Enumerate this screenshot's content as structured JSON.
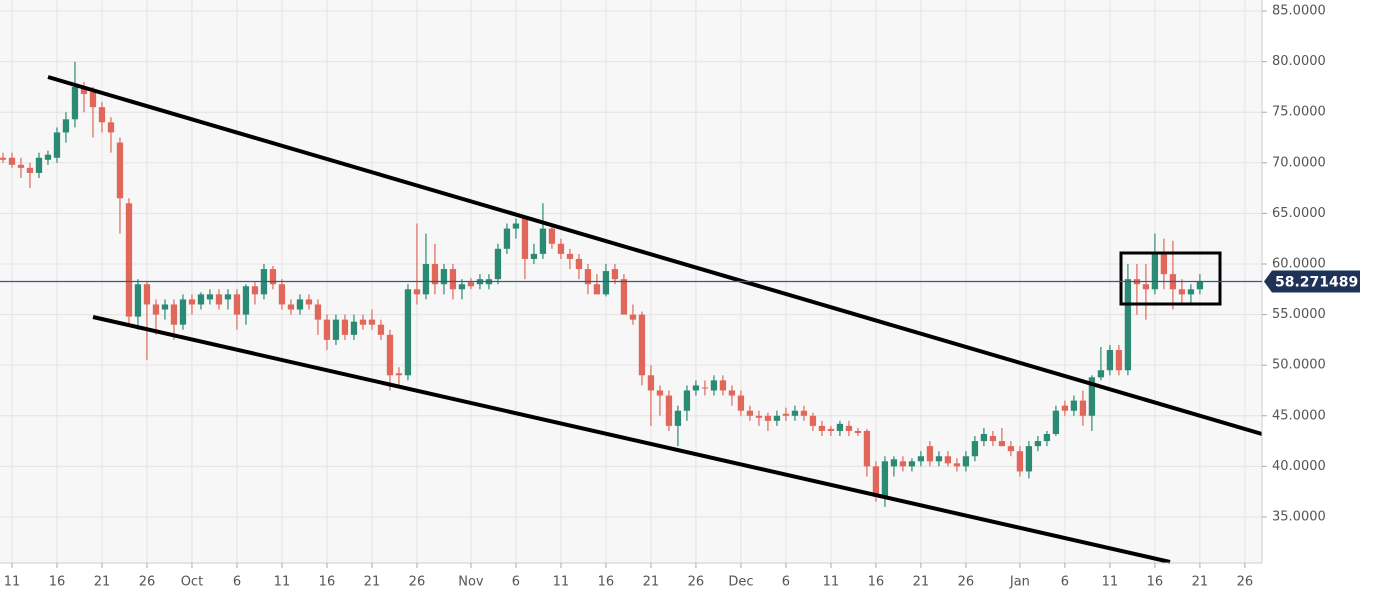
{
  "chart_data": {
    "type": "candlestick",
    "x": [
      -1,
      0,
      1,
      2,
      3,
      4,
      5,
      6,
      7,
      8,
      9,
      10,
      11,
      12,
      13,
      14,
      15,
      16,
      17,
      18,
      19,
      20,
      21,
      22,
      23,
      24,
      25,
      26,
      27,
      28,
      29,
      30,
      31,
      32,
      33,
      34,
      35,
      36,
      37,
      38,
      39,
      40,
      41,
      42,
      43,
      44,
      45,
      46,
      47,
      48,
      49,
      50,
      51,
      52,
      53,
      54,
      55,
      56,
      57,
      58,
      59,
      60,
      61,
      62,
      63,
      64,
      65,
      66,
      67,
      68,
      69,
      70,
      71,
      72,
      73,
      74,
      75,
      76,
      77,
      78,
      79,
      80,
      81,
      82,
      83,
      84,
      85,
      86,
      87,
      88,
      89,
      90,
      91,
      92,
      93,
      94,
      95,
      96,
      97,
      98,
      99,
      100,
      101,
      102,
      103,
      104,
      105,
      106,
      107,
      108,
      109,
      110,
      111,
      112,
      113,
      114,
      115,
      116,
      117,
      118,
      119,
      120,
      121,
      122,
      123,
      124,
      125,
      126,
      127,
      128,
      129,
      130,
      131,
      132
    ],
    "ohlc": [
      [
        70.5,
        71,
        70,
        70.3
      ],
      [
        70.5,
        71,
        69.5,
        69.8
      ],
      [
        69.8,
        70.5,
        68.5,
        69.5
      ],
      [
        69.5,
        70,
        67.5,
        69
      ],
      [
        69,
        71,
        68.5,
        70.5
      ],
      [
        70.3,
        71.2,
        69.8,
        70.8
      ],
      [
        70.5,
        73.5,
        70,
        73
      ],
      [
        73,
        75,
        72,
        74.3
      ],
      [
        74.3,
        80,
        73.5,
        77.5
      ],
      [
        77.5,
        78,
        75,
        76.8
      ],
      [
        77,
        77.5,
        72.5,
        75.5
      ],
      [
        75.5,
        76,
        73,
        74
      ],
      [
        74,
        74.5,
        71,
        73
      ],
      [
        72,
        72.5,
        63,
        66.5
      ],
      [
        66,
        66.5,
        54,
        54.8
      ],
      [
        54.8,
        58.5,
        53.5,
        58
      ],
      [
        58,
        58.3,
        50.5,
        56
      ],
      [
        56,
        56.5,
        53,
        55
      ],
      [
        55.5,
        56.5,
        54.5,
        56
      ],
      [
        56,
        56.5,
        52.5,
        54
      ],
      [
        54,
        57,
        53.5,
        56.5
      ],
      [
        56.5,
        57,
        55,
        56
      ],
      [
        56,
        57.2,
        55.5,
        57
      ],
      [
        56.5,
        57.5,
        56,
        57
      ],
      [
        57,
        57.5,
        55.5,
        56
      ],
      [
        56.5,
        57.5,
        55.5,
        57
      ],
      [
        57,
        57.5,
        53.5,
        55
      ],
      [
        55,
        58,
        54,
        57.8
      ],
      [
        57.8,
        58.2,
        56,
        57
      ],
      [
        57,
        60,
        56.5,
        59.5
      ],
      [
        59.5,
        59.8,
        57.5,
        58
      ],
      [
        58,
        58.5,
        55.5,
        56
      ],
      [
        56,
        56.5,
        55,
        55.5
      ],
      [
        55.5,
        57,
        55,
        56.5
      ],
      [
        56.5,
        57,
        55.5,
        56
      ],
      [
        56,
        56.5,
        53,
        54.5
      ],
      [
        54.5,
        55,
        51.5,
        52.5
      ],
      [
        52.5,
        55,
        52,
        54.5
      ],
      [
        54.5,
        55,
        52.5,
        53
      ],
      [
        53,
        55,
        52.5,
        54.3
      ],
      [
        54.5,
        55,
        53.5,
        54
      ],
      [
        54.5,
        55.5,
        53.5,
        54
      ],
      [
        54,
        54.5,
        52.5,
        53
      ],
      [
        53,
        53.5,
        47.5,
        49
      ],
      [
        49.2,
        49.8,
        48,
        49
      ],
      [
        49,
        58,
        48.5,
        57.5
      ],
      [
        57.5,
        64,
        56,
        57
      ],
      [
        57,
        63,
        56.5,
        60
      ],
      [
        60,
        62,
        57,
        58
      ],
      [
        58,
        60,
        57,
        59.5
      ],
      [
        59.5,
        60,
        56.5,
        57.5
      ],
      [
        57.5,
        58.5,
        56.5,
        58
      ],
      [
        58.2,
        58.6,
        57.5,
        57.8
      ],
      [
        58,
        59,
        57.5,
        58.5
      ],
      [
        58,
        59,
        57.5,
        58.5
      ],
      [
        58.5,
        62,
        58,
        61.5
      ],
      [
        61.5,
        64,
        61,
        63.5
      ],
      [
        63.5,
        64.5,
        62.5,
        64
      ],
      [
        64.5,
        64.8,
        58.5,
        60.5
      ],
      [
        60.5,
        62,
        60,
        61
      ],
      [
        61,
        66,
        60.5,
        63.5
      ],
      [
        63.5,
        64,
        61.5,
        62
      ],
      [
        62,
        62.5,
        60.5,
        61
      ],
      [
        61,
        61.5,
        59.5,
        60.5
      ],
      [
        60.5,
        61,
        58.5,
        59.5
      ],
      [
        59.5,
        60,
        57,
        58
      ],
      [
        58,
        59,
        57,
        57
      ],
      [
        57,
        60,
        56.8,
        59.3
      ],
      [
        59.5,
        60,
        58,
        58.5
      ],
      [
        58.5,
        59,
        55,
        55
      ],
      [
        55,
        56,
        54,
        54.5
      ],
      [
        55,
        55.3,
        48,
        49
      ],
      [
        49,
        50,
        44,
        47.5
      ],
      [
        47.5,
        48,
        45,
        47
      ],
      [
        47,
        47.5,
        43.5,
        44
      ],
      [
        44,
        46,
        42,
        45.5
      ],
      [
        45.5,
        48,
        44.5,
        47.5
      ],
      [
        47.5,
        48.5,
        47,
        48
      ],
      [
        47.8,
        48.5,
        47,
        47.7
      ],
      [
        47.5,
        49,
        47,
        48.5
      ],
      [
        48.5,
        49,
        47,
        47.5
      ],
      [
        47.5,
        48,
        46,
        47
      ],
      [
        47,
        47.5,
        45,
        45.5
      ],
      [
        45.5,
        46,
        44.5,
        45
      ],
      [
        45,
        45.5,
        44,
        44.8
      ],
      [
        45,
        45.3,
        43.5,
        44.5
      ],
      [
        44.5,
        45.5,
        44,
        45
      ],
      [
        45.2,
        45.8,
        44.5,
        45
      ],
      [
        45,
        46,
        44.5,
        45.5
      ],
      [
        45.5,
        46,
        44.5,
        45
      ],
      [
        45,
        45.3,
        43.5,
        44
      ],
      [
        44,
        44.5,
        43,
        43.5
      ],
      [
        43.7,
        44,
        43,
        43.5
      ],
      [
        43.5,
        44.5,
        43,
        44.2
      ],
      [
        44,
        44.5,
        43,
        43.5
      ],
      [
        43.5,
        43.8,
        43,
        43.3
      ],
      [
        43.5,
        43.7,
        39,
        40
      ],
      [
        40,
        40.5,
        36.5,
        37
      ],
      [
        37,
        41,
        36,
        40.5
      ],
      [
        40,
        41,
        39,
        40.7
      ],
      [
        40.5,
        41,
        39.5,
        40
      ],
      [
        40,
        40.8,
        39.5,
        40.5
      ],
      [
        40.5,
        41.5,
        40,
        41
      ],
      [
        42,
        42.5,
        40,
        40.5
      ],
      [
        40.5,
        41.5,
        40,
        41
      ],
      [
        41,
        41.5,
        40,
        40.3
      ],
      [
        40.3,
        40.8,
        39.5,
        40
      ],
      [
        40,
        41.5,
        39.5,
        41
      ],
      [
        41,
        43,
        40.5,
        42.5
      ],
      [
        42.5,
        43.8,
        42,
        43.2
      ],
      [
        43,
        43.5,
        42,
        42.5
      ],
      [
        42.5,
        43.8,
        42,
        42
      ],
      [
        42,
        42.5,
        41,
        41.5
      ],
      [
        41.5,
        42,
        39,
        39.5
      ],
      [
        39.5,
        42.5,
        38.8,
        42
      ],
      [
        42,
        43,
        41.5,
        42.5
      ],
      [
        42.5,
        43.5,
        42,
        43.2
      ],
      [
        43.2,
        46,
        43,
        45.5
      ],
      [
        46,
        46.5,
        45,
        45.5
      ],
      [
        45.5,
        47,
        45,
        46.5
      ],
      [
        46.5,
        47.5,
        44,
        45
      ],
      [
        45,
        49,
        43.5,
        48.8
      ],
      [
        48.8,
        51.8,
        48.5,
        49.5
      ],
      [
        49.5,
        52,
        49,
        51.5
      ],
      [
        51.5,
        52,
        49,
        49.5
      ],
      [
        49.5,
        60,
        49,
        58.5
      ],
      [
        58.5,
        60,
        55,
        58
      ],
      [
        58,
        60,
        54.5,
        57.5
      ],
      [
        57.5,
        63,
        57,
        61
      ],
      [
        61,
        62.5,
        57.5,
        59
      ],
      [
        59,
        62.3,
        55.5,
        57.5
      ],
      [
        57.5,
        58.5,
        56,
        57
      ],
      [
        57,
        58,
        56,
        57.5
      ],
      [
        57.5,
        59,
        57,
        58.27
      ]
    ],
    "up_color": "#2b8a73",
    "down_color": "#e0675a",
    "last_price": 58.271489,
    "xlim": [
      -1.33,
      138.9
    ],
    "xticks": [
      {
        "value": 0,
        "label": "11"
      },
      {
        "value": 5,
        "label": "16"
      },
      {
        "value": 10,
        "label": "21"
      },
      {
        "value": 15,
        "label": "26"
      },
      {
        "value": 20,
        "label": "Oct"
      },
      {
        "value": 25,
        "label": "6"
      },
      {
        "value": 30,
        "label": "11"
      },
      {
        "value": 35,
        "label": "16"
      },
      {
        "value": 40,
        "label": "21"
      },
      {
        "value": 45,
        "label": "26"
      },
      {
        "value": 51,
        "label": "Nov"
      },
      {
        "value": 56,
        "label": "6"
      },
      {
        "value": 61,
        "label": "11"
      },
      {
        "value": 66,
        "label": "16"
      },
      {
        "value": 71,
        "label": "21"
      },
      {
        "value": 76,
        "label": "26"
      },
      {
        "value": 81,
        "label": "Dec"
      },
      {
        "value": 86,
        "label": "6"
      },
      {
        "value": 91,
        "label": "11"
      },
      {
        "value": 96,
        "label": "16"
      },
      {
        "value": 101,
        "label": "21"
      },
      {
        "value": 106,
        "label": "26"
      },
      {
        "value": 112,
        "label": "Jan"
      },
      {
        "value": 117,
        "label": "6"
      },
      {
        "value": 122,
        "label": "11"
      },
      {
        "value": 127,
        "label": "16"
      },
      {
        "value": 132,
        "label": "21"
      },
      {
        "value": 137,
        "label": "26"
      }
    ],
    "ylim": [
      30.45,
      86.09
    ],
    "yticks": [
      {
        "value": 35,
        "label": "35.0000"
      },
      {
        "value": 40,
        "label": "40.0000"
      },
      {
        "value": 45,
        "label": "45.0000"
      },
      {
        "value": 50,
        "label": "50.0000"
      },
      {
        "value": 55,
        "label": "55.0000"
      },
      {
        "value": 60,
        "label": "60.0000"
      },
      {
        "value": 65,
        "label": "65.0000"
      },
      {
        "value": 70,
        "label": "70.0000"
      },
      {
        "value": 75,
        "label": "75.0000"
      },
      {
        "value": 80,
        "label": "80.0000"
      },
      {
        "value": 85,
        "label": "85.0000"
      }
    ],
    "grid": true
  }
}
